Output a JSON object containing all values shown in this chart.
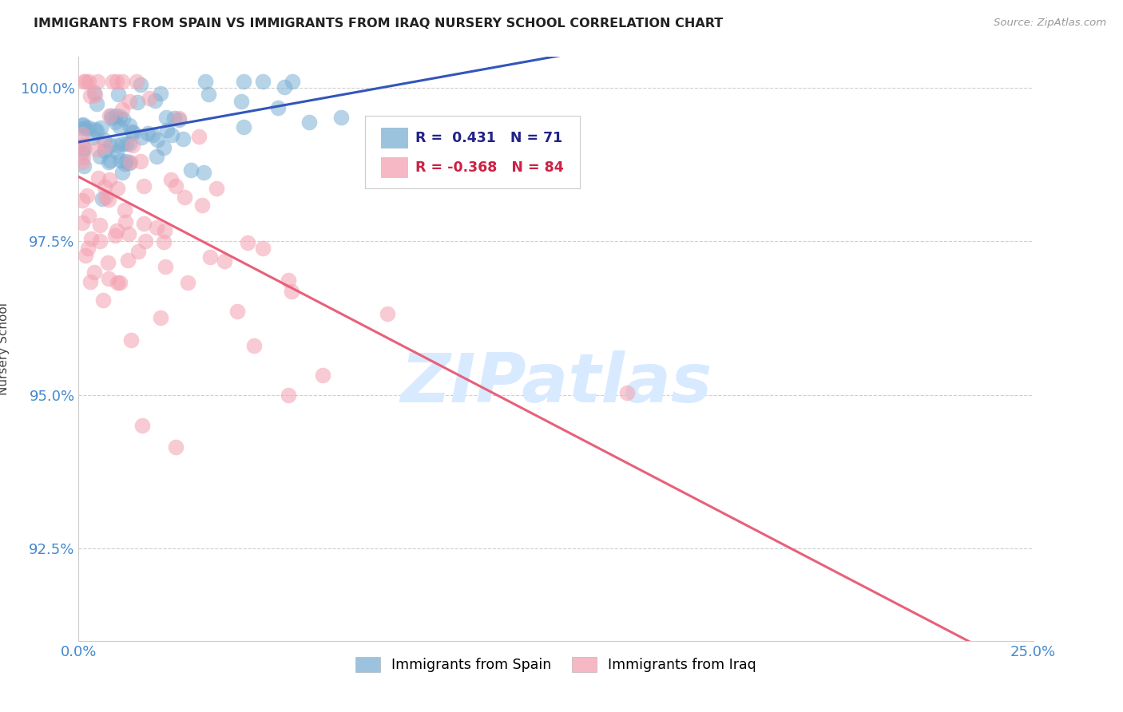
{
  "title": "IMMIGRANTS FROM SPAIN VS IMMIGRANTS FROM IRAQ NURSERY SCHOOL CORRELATION CHART",
  "source": "Source: ZipAtlas.com",
  "ylabel": "Nursery School",
  "xlim": [
    0.0,
    0.25
  ],
  "ylim": [
    0.91,
    1.005
  ],
  "xtick_labels": [
    "0.0%",
    "25.0%"
  ],
  "xtick_positions": [
    0.0,
    0.25
  ],
  "ytick_labels": [
    "92.5%",
    "95.0%",
    "97.5%",
    "100.0%"
  ],
  "ytick_positions": [
    0.925,
    0.95,
    0.975,
    1.0
  ],
  "legend_spain_label": "Immigrants from Spain",
  "legend_iraq_label": "Immigrants from Iraq",
  "R_spain": 0.431,
  "N_spain": 71,
  "R_iraq": -0.368,
  "N_iraq": 84,
  "color_spain": "#7BAFD4",
  "color_iraq": "#F4A0B0",
  "trendline_spain_color": "#3355BB",
  "trendline_iraq_color": "#E8607A",
  "background_color": "#FFFFFF",
  "watermark_color": "#D8EAFF"
}
